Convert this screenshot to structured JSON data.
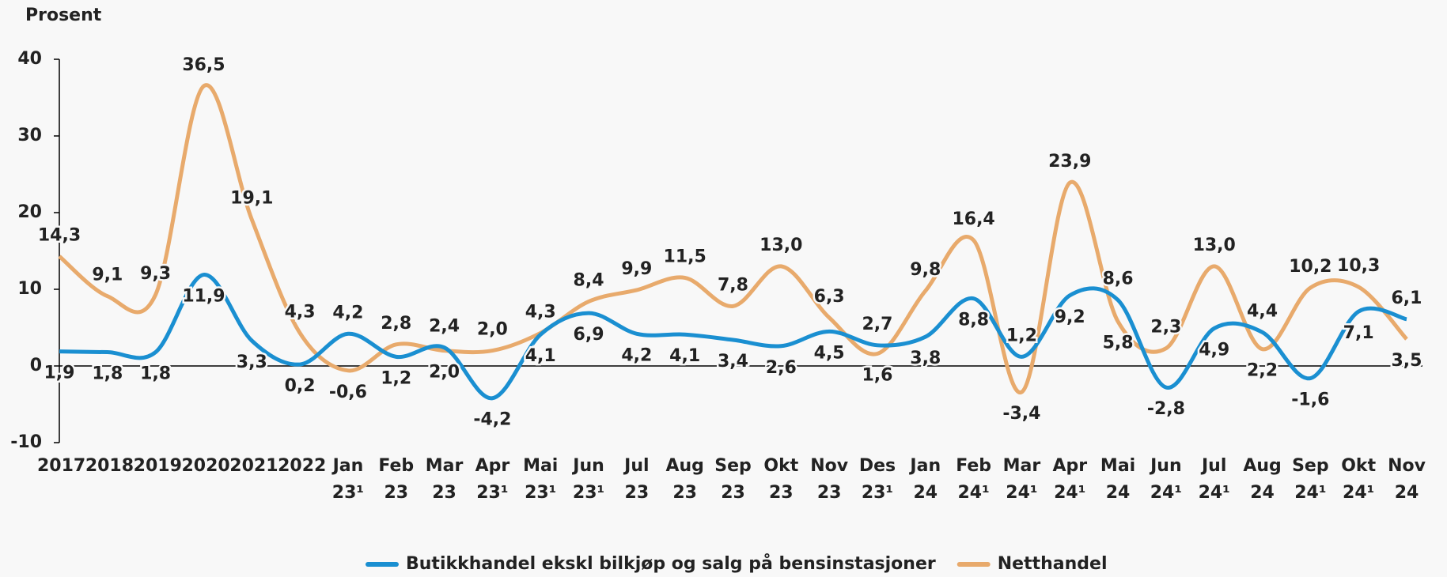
{
  "chart_data": {
    "type": "line",
    "ylabel": "Prosent",
    "categories": [
      "2017",
      "2018",
      "2019",
      "2020",
      "2021",
      "2022",
      "Jan 23¹",
      "Feb 23",
      "Mar 23",
      "Apr 23¹",
      "Mai 23¹",
      "Jun 23¹",
      "Jul 23",
      "Aug 23",
      "Sep 23",
      "Okt 23",
      "Nov 23",
      "Des 23¹",
      "Jan 24",
      "Feb 24¹",
      "Mar 24¹",
      "Apr 24¹",
      "Mai 24",
      "Jun 24¹",
      "Jul 24¹",
      "Aug 24",
      "Sep 24¹",
      "Okt 24¹",
      "Nov 24"
    ],
    "series": [
      {
        "name": "Butikkhandel ekskl bilkjøp og salg på bensinstasjoner",
        "color": "#1a8fd1",
        "values": [
          1.9,
          1.8,
          1.8,
          11.9,
          3.3,
          0.2,
          4.2,
          1.2,
          2.4,
          -4.2,
          4.1,
          6.9,
          4.2,
          4.1,
          3.4,
          2.6,
          4.5,
          2.7,
          3.8,
          8.8,
          1.2,
          9.2,
          8.6,
          -2.8,
          4.9,
          4.4,
          -1.6,
          7.1,
          6.1
        ],
        "value_labels": [
          "1,9",
          "1,8",
          "1,8",
          "11,9",
          "3,3",
          "0,2",
          "4,2",
          "1,2",
          "2,4",
          "-4,2",
          "4,1",
          "6,9",
          "4,2",
          "4,1",
          "3,4",
          "2,6",
          "4,5",
          "2,7",
          "3,8",
          "8,8",
          "1,2",
          "9,2",
          "8,6",
          "-2,8",
          "4,9",
          "4,4",
          "-1,6",
          "7,1",
          "6,1"
        ]
      },
      {
        "name": "Netthandel",
        "color": "#e8aa6c",
        "values": [
          14.3,
          9.1,
          9.3,
          36.5,
          19.1,
          4.3,
          -0.6,
          2.8,
          2.0,
          2.0,
          4.3,
          8.4,
          9.9,
          11.5,
          7.8,
          13.0,
          6.3,
          1.6,
          9.8,
          16.4,
          -3.4,
          23.9,
          5.8,
          2.3,
          13.0,
          2.2,
          10.2,
          10.3,
          3.5
        ],
        "value_labels": [
          "14,3",
          "9,1",
          "9,3",
          "36,5",
          "19,1",
          "4,3",
          "-0,6",
          "2,8",
          "2,0",
          "2,0",
          "4,3",
          "8,4",
          "9,9",
          "11,5",
          "7,8",
          "13,0",
          "6,3",
          "1,6",
          "9,8",
          "16,4",
          "-3,4",
          "23,9",
          "5,8",
          "2,3",
          "13,0",
          "2,2",
          "10,2",
          "10,3",
          "3,5"
        ]
      }
    ],
    "ylim": [
      -10,
      40
    ],
    "yticks": [
      -10,
      0,
      10,
      20,
      30,
      40
    ]
  }
}
